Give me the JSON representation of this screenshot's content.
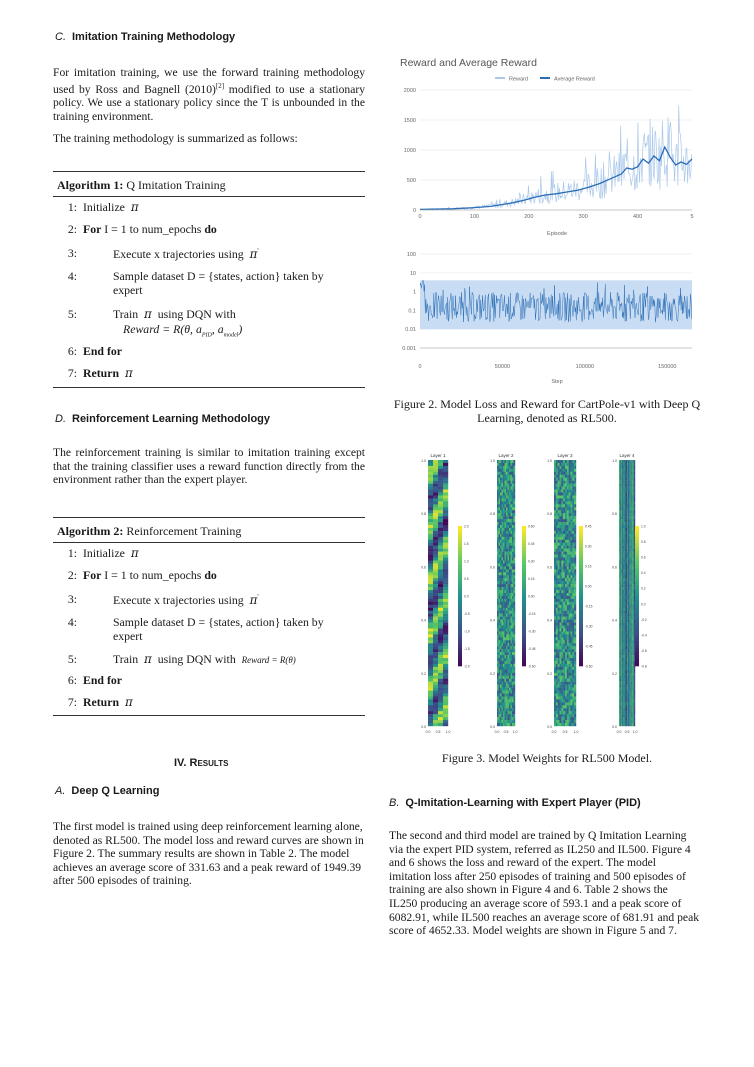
{
  "sections": {
    "c": {
      "letter": "C.",
      "title": "Imitation Training Methodology",
      "para1": "For imitation training, we use the forward training methodology used by Ross and Bagnell (2010)",
      "para1_ref": "[2]",
      "para1_rest": " modified to use a stationary policy. We use a stationary policy since the T is unbounded in the training environment.",
      "para2": "The training methodology is summarized as follows:"
    },
    "d": {
      "letter": "D.",
      "title": "Reinforcement Learning Methodology",
      "para": "The reinforcement training is similar to imitation training except that the training classifier uses a reward function directly from the environment rather than the expert player."
    },
    "results": {
      "number": "IV.",
      "title": "Results"
    },
    "a": {
      "letter": "A.",
      "title": "Deep Q Learning",
      "para": "The first model is trained using deep reinforcement learning alone, denoted as RL500. The model loss and reward curves are shown in Figure 2. The summary results are shown in Table 2. The model achieves an average score of 331.63 and a peak reward of 1949.39 after 500 episodes of training."
    },
    "b": {
      "letter": "B.",
      "title": "Q-Imitation-Learning with Expert Player (PID)",
      "para": "The second and third model are trained by Q Imitation Learning via the expert PID system, referred as IL250 and IL500. Figure 4 and 6 shows the loss and reward of the expert. The model imitation loss after 250 episodes of training and 500 episodes of training are also shown in Figure 4 and 6. Table 2 shows the IL250 producing an average score of 593.1 and a peak score of 6082.91, while IL500 reaches an average score of 681.91 and peak score of 4652.33. Model weights are shown in Figure 5 and 7."
    }
  },
  "algorithm1": {
    "label": "Algorithm 1:",
    "name": "Q Imitation Training",
    "lines": [
      {
        "n": "1:",
        "kw": "",
        "text": "Initialize"
      },
      {
        "n": "2:",
        "kw": "For",
        "text": "I = 1 to num_epochs",
        "kw2": "do"
      },
      {
        "n": "3:",
        "text": "Execute x trajectories using"
      },
      {
        "n": "4:",
        "text": "Sample dataset D = {states, action} taken by expert"
      },
      {
        "n": "5:",
        "text": "Train",
        "text2": "using DQN with",
        "formula": "Reward = R(θ, a",
        "sub1": "PID",
        "sub2": "model"
      },
      {
        "n": "6:",
        "kw": "End for"
      },
      {
        "n": "7:",
        "kw": "Return"
      }
    ]
  },
  "algorithm2": {
    "label": "Algorithm 2:",
    "name": "Reinforcement Training",
    "lines": [
      {
        "n": "1:",
        "text": "Initialize"
      },
      {
        "n": "2:",
        "kw": "For",
        "text": "I = 1 to num_epochs",
        "kw2": "do"
      },
      {
        "n": "3:",
        "text": "Execute x trajectories using"
      },
      {
        "n": "4:",
        "text": "Sample dataset D = {states, action} taken by expert"
      },
      {
        "n": "5:",
        "text": "Train",
        "text2": "using DQN with",
        "formula": "Reward = R(θ)"
      },
      {
        "n": "6:",
        "kw": "End for"
      },
      {
        "n": "7:",
        "kw": "Return"
      }
    ]
  },
  "pi_symbol": "π",
  "figure2": {
    "caption": "Figure 2. Model Loss and Reward for CartPole-v1 with Deep Q Learning, denoted as RL500.",
    "reward_chart": {
      "type": "line",
      "title": "Reward and Average Reward",
      "xlabel": "Episode",
      "legend": [
        "Reward",
        "Average Reward"
      ],
      "legend_placement": "top",
      "colors": {
        "reward": "#aac8ea",
        "average": "#2a6db5"
      },
      "xlim": [
        0,
        500
      ],
      "ylim": [
        0,
        2000
      ],
      "xticks": [
        "0",
        "100",
        "200",
        "300",
        "400",
        "5"
      ],
      "yticks": [
        "0",
        "500",
        "1000",
        "1500",
        "2000"
      ],
      "average": {
        "x": [
          0,
          60,
          100,
          130,
          150,
          170,
          190,
          210,
          230,
          250,
          270,
          290,
          310,
          330,
          350,
          370,
          380,
          390,
          400,
          410,
          420,
          430,
          440,
          450,
          460,
          470,
          480,
          490,
          500
        ],
        "y": [
          10,
          20,
          40,
          60,
          90,
          120,
          160,
          210,
          250,
          270,
          300,
          330,
          380,
          440,
          520,
          600,
          700,
          680,
          720,
          850,
          780,
          900,
          820,
          1050,
          880,
          750,
          800,
          760,
          850
        ]
      }
    },
    "loss_chart": {
      "type": "line",
      "xlabel": "Step",
      "scale": "log",
      "xlim": [
        0,
        165000
      ],
      "ylim": [
        0.001,
        100
      ],
      "xticks": [
        "0",
        "50000",
        "100000",
        "150000"
      ],
      "yticks": [
        "100",
        "10",
        "1",
        "0.1",
        "0.01",
        "0.001"
      ],
      "band_low": 0.01,
      "band_high": 4,
      "median": 0.15
    }
  },
  "figure3": {
    "caption": "Figure 3. Model Weights for RL500 Model.",
    "type": "heatmap",
    "layers": [
      {
        "title": "Layer 1",
        "yticks": [
          "1.0",
          "0.8",
          "0.6",
          "0.4",
          "0.2",
          "0.0"
        ],
        "xticks": [
          "0.0",
          "0.5",
          "1.0"
        ],
        "cbar": [
          "2.0",
          "1.5",
          "1.0",
          "0.5",
          "0.0",
          "-0.5",
          "-1.0",
          "-1.5",
          "-2.0"
        ]
      },
      {
        "title": "Layer 2",
        "yticks": [
          "1.0",
          "0.8",
          "0.6",
          "0.4",
          "0.2",
          "0.0"
        ],
        "xticks": [
          "0.0",
          "0.5",
          "1.0"
        ],
        "cbar": [
          "0.60",
          "0.45",
          "0.30",
          "0.15",
          "0.00",
          "-0.15",
          "-0.30",
          "-0.45",
          "-0.60"
        ]
      },
      {
        "title": "Layer 3",
        "yticks": [
          "1.0",
          "0.8",
          "0.6",
          "0.4",
          "0.2",
          "0.0"
        ],
        "xticks": [
          "0.0",
          "0.5",
          "1.0"
        ],
        "cbar": [
          "0.45",
          "0.30",
          "0.15",
          "0.00",
          "-0.15",
          "-0.30",
          "-0.45",
          "-0.60"
        ]
      },
      {
        "title": "Layer 4",
        "yticks": [
          "1.0",
          "0.8",
          "0.6",
          "0.4",
          "0.2",
          "0.0"
        ],
        "xticks": [
          "0.0",
          "0.5",
          "1.0"
        ],
        "cbar": [
          "1.0",
          "0.8",
          "0.6",
          "0.4",
          "0.2",
          "0.0",
          "-0.2",
          "-0.4",
          "-0.6",
          "-0.8"
        ]
      }
    ]
  }
}
